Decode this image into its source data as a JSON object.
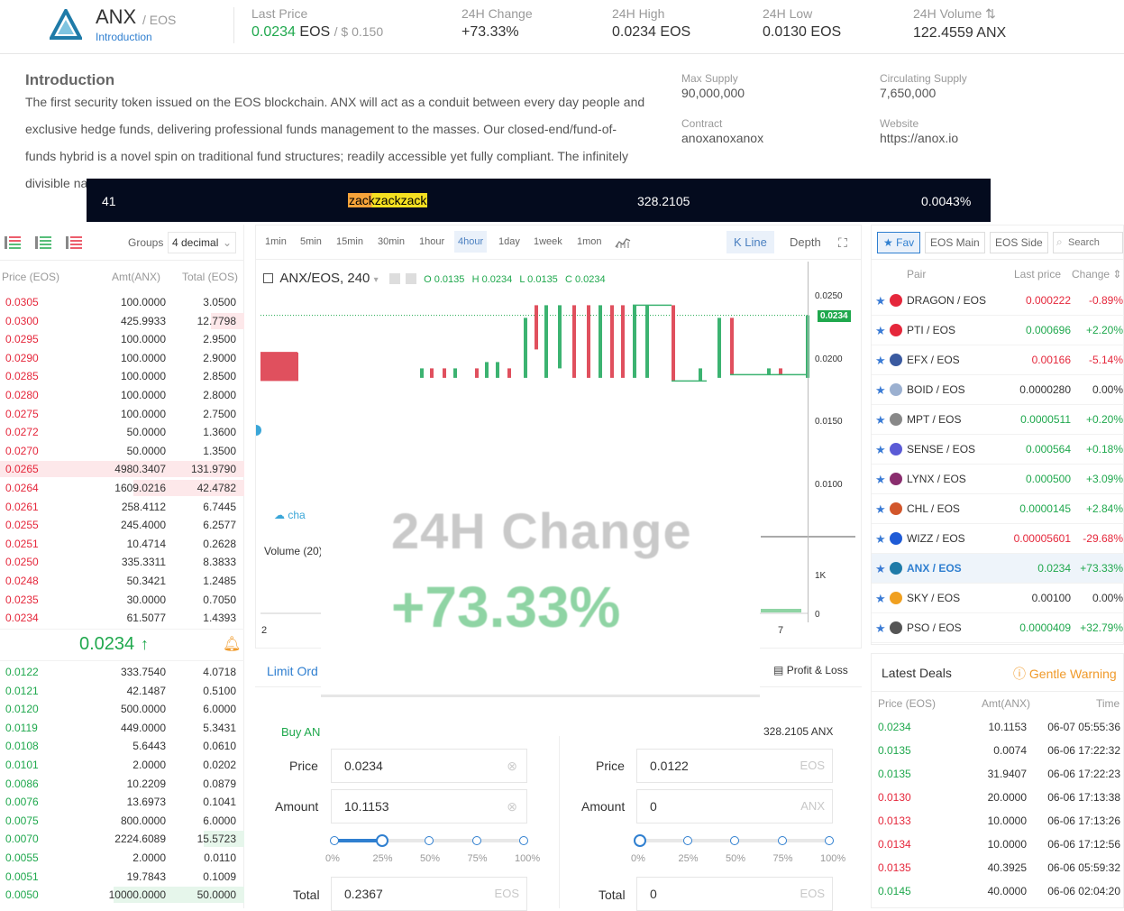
{
  "header": {
    "pair_base": "ANX",
    "pair_quote": "/ EOS",
    "intro_link": "Introduction",
    "last_price_label": "Last Price",
    "last_price_value": "0.0234",
    "last_price_unit": "EOS",
    "last_price_usd": "/ $ 0.150",
    "change_label": "24H Change",
    "change_value": "+73.33%",
    "high_label": "24H High",
    "high_value": "0.0234",
    "high_unit": "EOS",
    "low_label": "24H Low",
    "low_value": "0.0130",
    "low_unit": "EOS",
    "volume_label": "24H Volume",
    "volume_value": "122.4559 ANX"
  },
  "intro": {
    "title": "Introduction",
    "line1": "The first security token issued on the EOS blockchain. ANX will act as a conduit between every day people and",
    "line2": "exclusive hedge funds, delivering professional funds management to the masses. Our closed-end/fund-of-",
    "line3": "funds hybrid is a novel spin on traditional fund structures; readily accessible yet fully compliant. The infinitely",
    "line4": "divisible na",
    "max_supply_label": "Max Supply",
    "max_supply_value": "90,000,000",
    "circ_supply_label": "Circulating Supply",
    "circ_supply_value": "7,650,000",
    "contract_label": "Contract",
    "contract_value": "anoxanoxanox",
    "website_label": "Website",
    "website_value": "https://anox.io"
  },
  "ticker_bar": {
    "col1": "41",
    "col2": "zackzackzack",
    "col3": "328.2105",
    "col4": "0.0043%"
  },
  "orderbook": {
    "groups_label": "Groups",
    "groups_value": "4 decimal",
    "headers": [
      "Price (EOS)",
      "Amt(ANX)",
      "Total (EOS)"
    ],
    "asks": [
      [
        "0.0305",
        "100.0000",
        "3.0500"
      ],
      [
        "0.0300",
        "425.9933",
        "12.7798"
      ],
      [
        "0.0295",
        "100.0000",
        "2.9500"
      ],
      [
        "0.0290",
        "100.0000",
        "2.9000"
      ],
      [
        "0.0285",
        "100.0000",
        "2.8500"
      ],
      [
        "0.0280",
        "100.0000",
        "2.8000"
      ],
      [
        "0.0275",
        "100.0000",
        "2.7500"
      ],
      [
        "0.0272",
        "50.0000",
        "1.3600"
      ],
      [
        "0.0270",
        "50.0000",
        "1.3500"
      ],
      [
        "0.0265",
        "4980.3407",
        "131.9790"
      ],
      [
        "0.0264",
        "1609.0216",
        "42.4782"
      ],
      [
        "0.0261",
        "258.4112",
        "6.7445"
      ],
      [
        "0.0255",
        "245.4000",
        "6.2577"
      ],
      [
        "0.0251",
        "10.4714",
        "0.2628"
      ],
      [
        "0.0250",
        "335.3311",
        "8.3833"
      ],
      [
        "0.0248",
        "50.3421",
        "1.2485"
      ],
      [
        "0.0235",
        "30.0000",
        "0.7050"
      ],
      [
        "0.0234",
        "61.5077",
        "1.4393"
      ]
    ],
    "mid_price": "0.0234",
    "bids": [
      [
        "0.0122",
        "333.7540",
        "4.0718"
      ],
      [
        "0.0121",
        "42.1487",
        "0.5100"
      ],
      [
        "0.0120",
        "500.0000",
        "6.0000"
      ],
      [
        "0.0119",
        "449.0000",
        "5.3431"
      ],
      [
        "0.0108",
        "5.6443",
        "0.0610"
      ],
      [
        "0.0101",
        "2.0000",
        "0.0202"
      ],
      [
        "0.0086",
        "10.2209",
        "0.0879"
      ],
      [
        "0.0076",
        "13.6973",
        "0.1041"
      ],
      [
        "0.0075",
        "800.0000",
        "6.0000"
      ],
      [
        "0.0070",
        "2224.6089",
        "15.5723"
      ],
      [
        "0.0055",
        "2.0000",
        "0.0110"
      ],
      [
        "0.0051",
        "19.7843",
        "0.1009"
      ],
      [
        "0.0050",
        "10000.0000",
        "50.0000"
      ]
    ]
  },
  "chart": {
    "timeframes": [
      "1min",
      "5min",
      "15min",
      "30min",
      "1hour",
      "4hour",
      "1day",
      "1week",
      "1mon"
    ],
    "kline_tab": "K Line",
    "depth_tab": "Depth",
    "symbol": "ANX/EOS, 240",
    "ohlc_o": "O 0.0135",
    "ohlc_h": "H 0.0234",
    "ohlc_l": "L 0.0135",
    "ohlc_c": "C 0.0234",
    "y_ticks": [
      "0.0250",
      "0.0200",
      "0.0150",
      "0.0100"
    ],
    "current_price_tag": "0.0234",
    "volume_label": "Volume (20)",
    "vol_ticks": [
      "1K",
      "0"
    ],
    "x_tick_left": "2",
    "x_tick_right": "7",
    "watermark": "cha"
  },
  "overlay": {
    "label": "24H Change",
    "value": "+73.33%"
  },
  "tradeform": {
    "tab_label": "Limit Ord",
    "pl_label": "Profit & Loss",
    "buy_label": "Buy AN",
    "balance": "328.2105 ANX",
    "buy_price_label": "Price",
    "buy_price_value": "0.0234",
    "buy_amount_label": "Amount",
    "buy_amount_value": "10.1153",
    "buy_total_label": "Total",
    "buy_total_value": "0.2367",
    "buy_total_unit": "EOS",
    "buy_progress": 0.25,
    "sell_price_label": "Price",
    "sell_price_value": "0.0122",
    "sell_price_unit": "EOS",
    "sell_amount_label": "Amount",
    "sell_amount_value": "0",
    "sell_amount_unit": "ANX",
    "sell_total_label": "Total",
    "sell_total_value": "0",
    "sell_total_unit": "EOS",
    "sell_progress": 0,
    "slider_marks": [
      "0%",
      "25%",
      "50%",
      "75%",
      "100%"
    ]
  },
  "market": {
    "tabs": [
      "Fav",
      "EOS Main",
      "EOS Side"
    ],
    "search_placeholder": "Search",
    "headers": [
      "Pair",
      "Last price",
      "Change"
    ],
    "rows": [
      {
        "pair": "DRAGON / EOS",
        "price": "0.000222",
        "change": "-0.89%",
        "dir": "down",
        "icon_color": "#e5273b"
      },
      {
        "pair": "PTI / EOS",
        "price": "0.000696",
        "change": "+2.20%",
        "dir": "up",
        "icon_color": "#e5273b"
      },
      {
        "pair": "EFX / EOS",
        "price": "0.00166",
        "change": "-5.14%",
        "dir": "down",
        "icon_color": "#3a5aa0"
      },
      {
        "pair": "BOID / EOS",
        "price": "0.0000280",
        "change": "0.00%",
        "dir": "flat",
        "icon_color": "#9bb0d0"
      },
      {
        "pair": "MPT / EOS",
        "price": "0.0000511",
        "change": "+0.20%",
        "dir": "up",
        "icon_color": "#888888"
      },
      {
        "pair": "SENSE / EOS",
        "price": "0.000564",
        "change": "+0.18%",
        "dir": "up",
        "icon_color": "#5b5bd6"
      },
      {
        "pair": "LYNX / EOS",
        "price": "0.000500",
        "change": "+3.09%",
        "dir": "up",
        "icon_color": "#8a2d6e"
      },
      {
        "pair": "CHL / EOS",
        "price": "0.0000145",
        "change": "+2.84%",
        "dir": "up",
        "icon_color": "#d2562b"
      },
      {
        "pair": "WIZZ / EOS",
        "price": "0.00005601",
        "change": "-29.68%",
        "dir": "down",
        "icon_color": "#1f5bd6"
      },
      {
        "pair": "ANX / EOS",
        "price": "0.0234",
        "change": "+73.33%",
        "dir": "up",
        "icon_color": "#1f7ba8"
      },
      {
        "pair": "SKY / EOS",
        "price": "0.00100",
        "change": "0.00%",
        "dir": "flat",
        "icon_color": "#f0a020"
      },
      {
        "pair": "PSO / EOS",
        "price": "0.0000409",
        "change": "+32.79%",
        "dir": "up",
        "icon_color": "#555555"
      }
    ]
  },
  "deals": {
    "title": "Latest Deals",
    "warning": "Gentle Warning",
    "headers": [
      "Price (EOS)",
      "Amt(ANX)",
      "Time"
    ],
    "rows": [
      {
        "price": "0.0234",
        "amt": "10.1153",
        "time": "06-07 05:55:36",
        "dir": "up"
      },
      {
        "price": "0.0135",
        "amt": "0.0074",
        "time": "06-06 17:22:32",
        "dir": "up"
      },
      {
        "price": "0.0135",
        "amt": "31.9407",
        "time": "06-06 17:22:23",
        "dir": "up"
      },
      {
        "price": "0.0130",
        "amt": "20.0000",
        "time": "06-06 17:13:38",
        "dir": "down"
      },
      {
        "price": "0.0133",
        "amt": "10.0000",
        "time": "06-06 17:13:26",
        "dir": "down"
      },
      {
        "price": "0.0134",
        "amt": "10.0000",
        "time": "06-06 17:12:56",
        "dir": "down"
      },
      {
        "price": "0.0135",
        "amt": "40.3925",
        "time": "06-06 05:59:32",
        "dir": "down"
      },
      {
        "price": "0.0145",
        "amt": "40.0000",
        "time": "06-06 02:04:20",
        "dir": "up"
      }
    ]
  },
  "colors": {
    "up": "#1fa84d",
    "down": "#e5273b",
    "accent": "#2f7fd0",
    "bar_bg": "#040b1e"
  }
}
